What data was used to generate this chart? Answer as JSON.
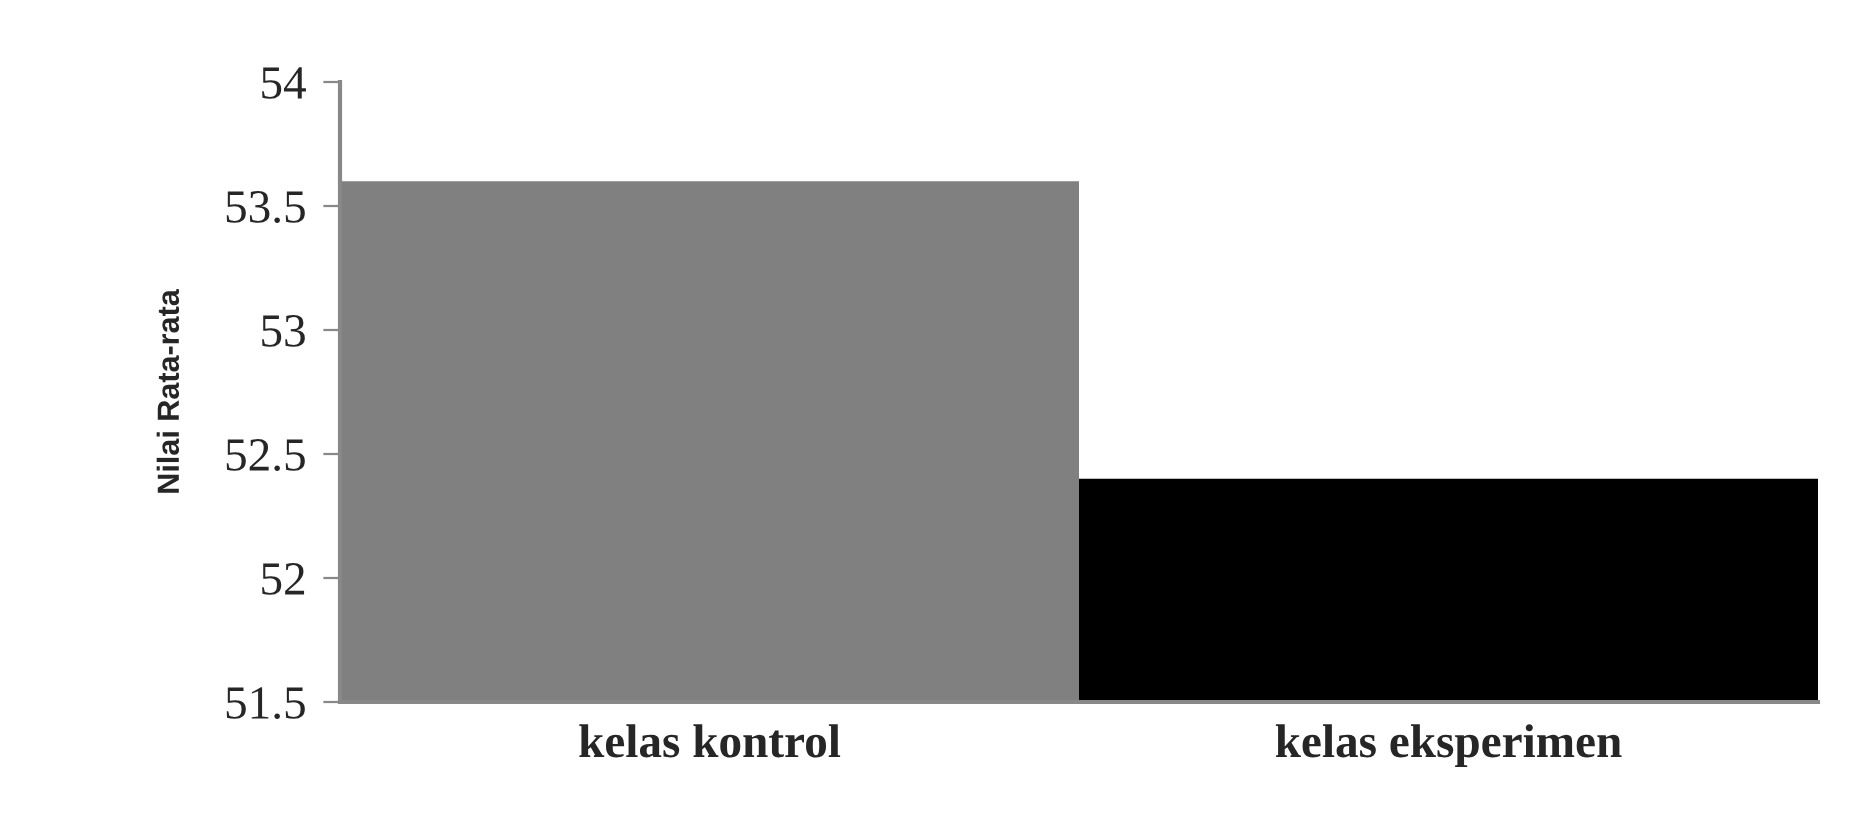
{
  "chart_data": {
    "type": "bar",
    "ylabel": "Nilai Rata-rata",
    "categories": [
      "kelas kontrol",
      "kelas eksperimen"
    ],
    "values": [
      53.6,
      52.4
    ],
    "colors": [
      "#808080",
      "#000000"
    ],
    "ylim": [
      51.5,
      54
    ],
    "yticks": [
      51.5,
      52,
      52.5,
      53,
      53.5,
      54
    ],
    "grid": false,
    "legend": false
  }
}
